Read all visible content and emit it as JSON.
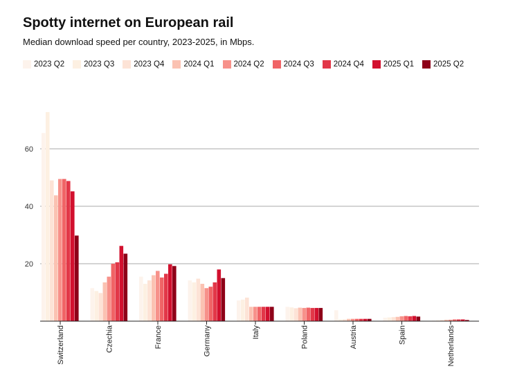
{
  "chart_data": {
    "type": "bar",
    "title": "Spotty internet on European rail",
    "subtitle": "Median download speed per country, 2023-2025, in Mbps.",
    "xlabel": "",
    "ylabel": "",
    "ylim": [
      0,
      75
    ],
    "yticks": [
      20,
      40,
      60
    ],
    "grid": true,
    "legend_position": "top",
    "categories": [
      "Switzerland",
      "Czechia",
      "France",
      "Germany",
      "Italy",
      "Poland",
      "Austria",
      "Spain",
      "Netherlands"
    ],
    "series": [
      {
        "name": "2023 Q2",
        "color": "#fdf3ec",
        "values": [
          65.5,
          11.5,
          15.5,
          14.2,
          7.2,
          5.0,
          3.8,
          1.2,
          0.2
        ]
      },
      {
        "name": "2023 Q3",
        "color": "#fdf0e2",
        "values": [
          72.8,
          10.5,
          13.0,
          13.5,
          7.5,
          4.8,
          0.6,
          1.3,
          0.3
        ]
      },
      {
        "name": "2023 Q4",
        "color": "#fde3d6",
        "values": [
          49.0,
          9.8,
          14.2,
          14.8,
          8.2,
          4.5,
          0.6,
          1.4,
          0.4
        ]
      },
      {
        "name": "2024 Q1",
        "color": "#fbc2b2",
        "values": [
          43.8,
          13.5,
          16.0,
          13.0,
          5.0,
          4.7,
          0.8,
          1.5,
          0.5
        ]
      },
      {
        "name": "2024 Q2",
        "color": "#f7918a",
        "values": [
          49.5,
          15.5,
          17.5,
          11.5,
          5.0,
          4.6,
          0.8,
          1.7,
          0.5
        ]
      },
      {
        "name": "2024 Q3",
        "color": "#f06466",
        "values": [
          49.5,
          20.0,
          15.2,
          12.0,
          5.0,
          4.7,
          0.8,
          1.8,
          0.6
        ]
      },
      {
        "name": "2024 Q4",
        "color": "#e23748",
        "values": [
          48.8,
          20.5,
          16.5,
          13.5,
          5.0,
          4.6,
          0.8,
          1.7,
          0.6
        ]
      },
      {
        "name": "2025 Q1",
        "color": "#d2102e",
        "values": [
          45.2,
          26.2,
          19.8,
          18.0,
          5.0,
          4.6,
          0.8,
          1.8,
          0.6
        ]
      },
      {
        "name": "2025 Q2",
        "color": "#8e0018",
        "values": [
          29.8,
          23.5,
          19.2,
          15.0,
          5.0,
          4.6,
          0.8,
          1.6,
          0.4
        ]
      }
    ]
  }
}
